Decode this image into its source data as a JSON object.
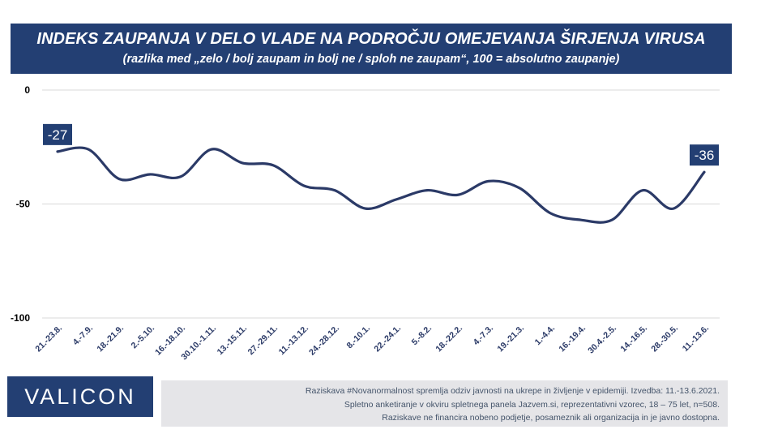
{
  "header": {
    "title": "INDEKS ZAUPANJA V DELO VLADE NA PODROČJU OMEJEVANJA ŠIRJENJA VIRUSA",
    "subtitle": "(razlika med „zelo / bolj zaupam in bolj ne / sploh ne zaupam“, 100 = absolutno zaupanje)"
  },
  "colors": {
    "brand": "#233f73",
    "line": "#2b3a67",
    "grid": "#d9d9d9",
    "footnote_bg": "#e5e5e8"
  },
  "chart_data": {
    "type": "line",
    "title": "INDEKS ZAUPANJA V DELO VLADE NA PODROČJU OMEJEVANJA ŠIRJENJA VIRUSA",
    "categories": [
      "21.-23.8.",
      "4.-7.9.",
      "18.-21.9.",
      "2.-5.10.",
      "16.-18.10.",
      "30.10.-1.11.",
      "13.-15.11.",
      "27.-29.11.",
      "11.-13.12.",
      "24.-28.12.",
      "8.-10.1.",
      "22.-24.1.",
      "5.-8.2.",
      "18.-22.2.",
      "4.-7.3.",
      "19.-21.3.",
      "1.-4.4.",
      "16.-19.4.",
      "30.4.-2.5.",
      "14.-16.5.",
      "28.-30.5.",
      "11.-13.6."
    ],
    "series": [
      {
        "values": [
          -27,
          -26,
          -39,
          -37,
          -38,
          -26,
          -32,
          -33,
          -42,
          -44,
          -52,
          -48,
          -44,
          -46,
          -40,
          -43,
          -54,
          -57,
          -57,
          -44,
          -52,
          -36
        ]
      }
    ],
    "data_labels": [
      {
        "index": 0,
        "text": "-27"
      },
      {
        "index": 21,
        "text": "-36"
      }
    ],
    "ylim": [
      -100,
      0
    ],
    "yticks": [
      "0",
      "-50",
      "-100"
    ],
    "grid": true
  },
  "logo": {
    "text": "VALICON"
  },
  "footnote": {
    "line1": "Raziskava #Novanormalnost spremlja odziv javnosti na ukrepe in življenje v epidemiji. Izvedba: 11.-13.6.2021.",
    "line2": "Spletno anketiranje v okviru spletnega panela Jazvem.si, reprezentativni vzorec, 18 – 75 let, n=508.",
    "line3": "Raziskave ne financira nobeno podjetje, posameznik ali organizacija in je javno dostopna."
  }
}
